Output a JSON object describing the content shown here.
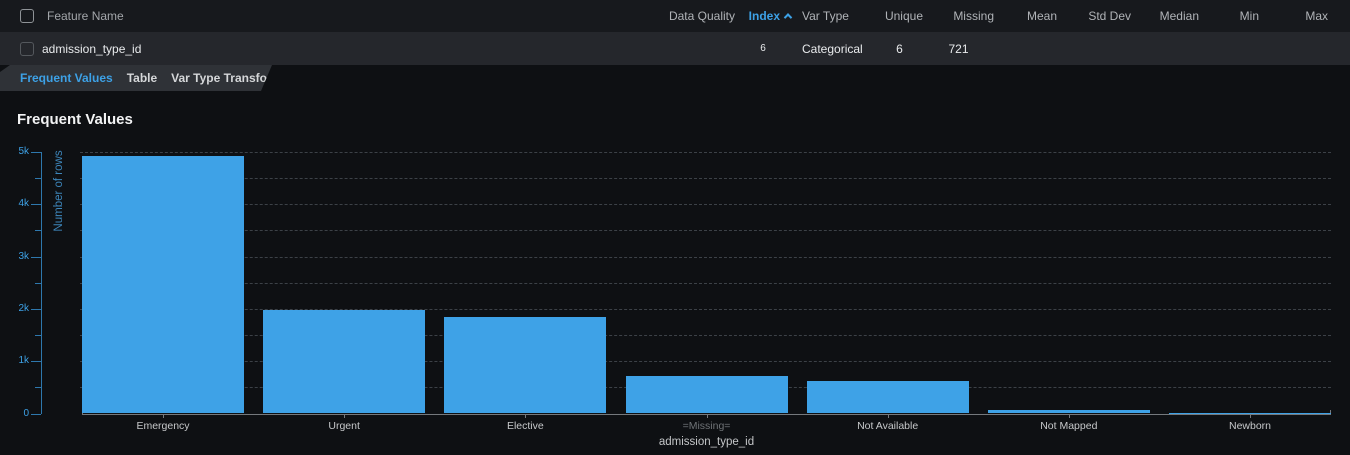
{
  "table": {
    "feature_name_label": "Feature Name",
    "columns": [
      "Data Quality",
      "Index",
      "Var Type",
      "Unique",
      "Missing",
      "Mean",
      "Std Dev",
      "Median",
      "Min",
      "Max"
    ],
    "sort": {
      "column": "Index",
      "direction": "ascending"
    },
    "row": {
      "selected": false,
      "name": "admission_type_id",
      "values": {
        "data_quality": "",
        "index": "6",
        "var_type": "Categorical",
        "unique": "6",
        "missing": "721",
        "mean": "",
        "std_dev": "",
        "median": "",
        "min": "",
        "max": ""
      }
    }
  },
  "tabs": [
    {
      "label": "Frequent Values",
      "active": true
    },
    {
      "label": "Table",
      "active": false
    },
    {
      "label": "Var Type Transform",
      "active": false
    }
  ],
  "section_title": "Frequent Values",
  "chart_data": {
    "type": "bar",
    "title": "Frequent Values",
    "categories": [
      "Emergency",
      "Urgent",
      "Elective",
      "=Missing=",
      "Not Available",
      "Not Mapped",
      "Newborn"
    ],
    "values": [
      4930,
      1970,
      1840,
      721,
      620,
      60,
      10
    ],
    "muted_category": "=Missing=",
    "xlabel": "admission_type_id",
    "ylabel": "Number of rows",
    "ylim": [
      0,
      5000
    ],
    "yticks": [
      "0",
      "1k",
      "2k",
      "3k",
      "4k",
      "5k"
    ],
    "ytick_interval": 1000,
    "minor_interval": 500,
    "grid": "horizontal-dashed",
    "legend": "none",
    "bar_color": "#3ea2e7"
  },
  "colors": {
    "accent": "#3da1e6",
    "bar": "#3ea2e7",
    "page_bg": "#0e1013",
    "header_bg": "#17191d",
    "row_bg": "#25272c",
    "tab_bg": "#2f3237"
  }
}
